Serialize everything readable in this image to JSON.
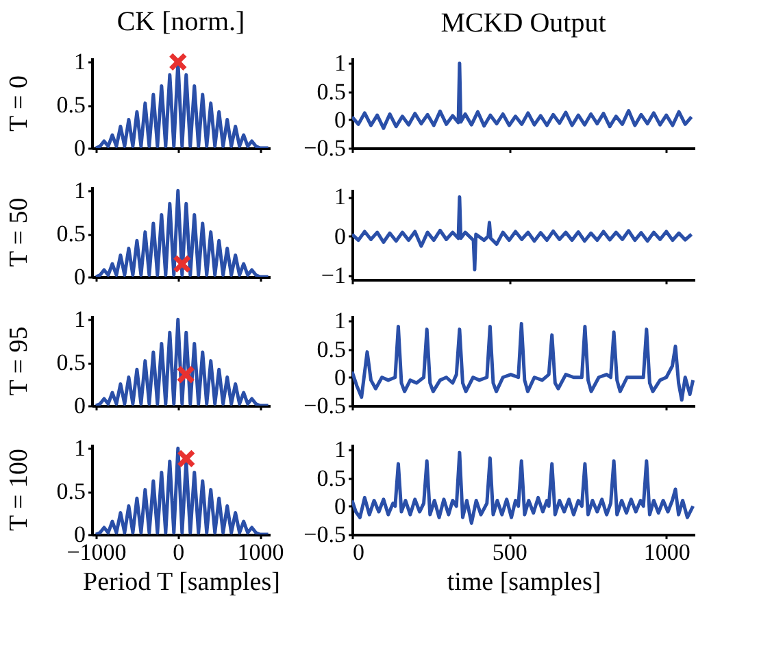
{
  "chart_data": [
    {
      "type": "line",
      "title": "CK [norm.]",
      "ylabel": "T = 0",
      "xlim": [
        -1050,
        1120
      ],
      "ylim": [
        0,
        1.05
      ],
      "xticks": [
        -1000,
        0,
        1000
      ],
      "yticks": [
        0,
        0.5,
        1
      ],
      "tick_labels": "y",
      "series": [
        {
          "color": "#2a4fa8",
          "x": [
            -1000,
            -950,
            -900,
            -850,
            -800,
            -750,
            -700,
            -650,
            -600,
            -550,
            -500,
            -450,
            -400,
            -350,
            -300,
            -250,
            -200,
            -150,
            -100,
            -50,
            0,
            50,
            100,
            150,
            200,
            250,
            300,
            350,
            400,
            450,
            500,
            550,
            600,
            650,
            700,
            750,
            800,
            850,
            900,
            950,
            1000,
            1100
          ],
          "values": [
            0,
            0.02,
            0.08,
            0.02,
            0.15,
            0.02,
            0.25,
            0.02,
            0.33,
            0.02,
            0.42,
            0.02,
            0.52,
            0.02,
            0.62,
            0.02,
            0.72,
            0.02,
            0.85,
            0.02,
            1.0,
            0.02,
            0.85,
            0.02,
            0.72,
            0.02,
            0.62,
            0.02,
            0.52,
            0.02,
            0.42,
            0.02,
            0.33,
            0.02,
            0.25,
            0.02,
            0.15,
            0.02,
            0.08,
            0.02,
            0,
            0
          ]
        },
        {
          "type": "scatter",
          "marker": "cross",
          "color": "#e8312f",
          "x": [
            0
          ],
          "values": [
            1.0
          ]
        }
      ]
    },
    {
      "type": "line",
      "title": "MCKD Output",
      "xlim": [
        0,
        1090
      ],
      "ylim": [
        -0.5,
        1.1
      ],
      "xticks": [
        0,
        500,
        1000
      ],
      "yticks": [
        -0.5,
        0,
        0.5,
        1
      ],
      "tick_labels": "y",
      "series": [
        {
          "color": "#2a4fa8",
          "x": [
            0,
            20,
            40,
            60,
            80,
            100,
            120,
            140,
            160,
            180,
            200,
            220,
            240,
            260,
            280,
            300,
            320,
            338,
            342,
            346,
            360,
            380,
            400,
            420,
            440,
            460,
            480,
            500,
            520,
            540,
            560,
            580,
            600,
            620,
            640,
            660,
            680,
            700,
            720,
            740,
            760,
            780,
            800,
            820,
            840,
            860,
            880,
            900,
            920,
            940,
            960,
            980,
            1000,
            1020,
            1040,
            1060,
            1080
          ],
          "values": [
            0.05,
            -0.08,
            0.12,
            -0.1,
            0.08,
            -0.15,
            0.1,
            -0.12,
            0.06,
            -0.09,
            0.11,
            -0.07,
            0.09,
            -0.1,
            0.15,
            -0.08,
            0.07,
            -0.05,
            1.0,
            -0.04,
            0.1,
            -0.09,
            0.14,
            -0.11,
            0.08,
            -0.07,
            0.1,
            -0.1,
            0.06,
            -0.08,
            0.12,
            -0.09,
            0.07,
            -0.1,
            0.09,
            -0.06,
            0.13,
            -0.1,
            0.08,
            -0.09,
            0.1,
            -0.07,
            0.11,
            -0.12,
            0.06,
            -0.08,
            0.16,
            -0.1,
            0.09,
            -0.07,
            0.12,
            -0.09,
            0.08,
            -0.1,
            0.14,
            -0.08,
            0.05
          ]
        }
      ]
    },
    {
      "type": "line",
      "ylabel": "T = 50",
      "xlim": [
        -1050,
        1120
      ],
      "ylim": [
        0,
        1.05
      ],
      "xticks": [
        -1000,
        0,
        1000
      ],
      "yticks": [
        0,
        0.5,
        1
      ],
      "tick_labels": "y",
      "series": [
        {
          "color": "#2a4fa8",
          "x": [
            -1000,
            -950,
            -900,
            -850,
            -800,
            -750,
            -700,
            -650,
            -600,
            -550,
            -500,
            -450,
            -400,
            -350,
            -300,
            -250,
            -200,
            -150,
            -100,
            -50,
            0,
            50,
            100,
            150,
            200,
            250,
            300,
            350,
            400,
            450,
            500,
            550,
            600,
            650,
            700,
            750,
            800,
            850,
            900,
            950,
            1000,
            1100
          ],
          "values": [
            0,
            0.02,
            0.08,
            0.02,
            0.15,
            0.02,
            0.25,
            0.02,
            0.33,
            0.02,
            0.42,
            0.02,
            0.52,
            0.02,
            0.62,
            0.02,
            0.72,
            0.02,
            0.85,
            0.02,
            1.0,
            0.02,
            0.85,
            0.02,
            0.72,
            0.02,
            0.62,
            0.02,
            0.52,
            0.02,
            0.42,
            0.02,
            0.33,
            0.02,
            0.25,
            0.02,
            0.15,
            0.02,
            0.08,
            0.02,
            0,
            0
          ]
        },
        {
          "type": "scatter",
          "marker": "cross",
          "color": "#e8312f",
          "x": [
            50
          ],
          "values": [
            0.15
          ]
        }
      ]
    },
    {
      "type": "line",
      "xlim": [
        0,
        1090
      ],
      "ylim": [
        -1.1,
        1.2
      ],
      "xticks": [
        0,
        500,
        1000
      ],
      "yticks": [
        -1,
        0,
        1
      ],
      "tick_labels": "y",
      "series": [
        {
          "color": "#2a4fa8",
          "x": [
            0,
            20,
            40,
            60,
            80,
            100,
            120,
            140,
            160,
            180,
            200,
            220,
            240,
            260,
            280,
            300,
            320,
            338,
            342,
            346,
            360,
            386,
            390,
            394,
            420,
            433,
            437,
            441,
            460,
            480,
            500,
            520,
            540,
            560,
            580,
            600,
            620,
            640,
            660,
            680,
            700,
            720,
            740,
            760,
            780,
            800,
            820,
            840,
            860,
            880,
            900,
            920,
            940,
            960,
            980,
            1000,
            1020,
            1040,
            1060,
            1080
          ],
          "values": [
            0.05,
            -0.1,
            0.12,
            -0.08,
            0.1,
            -0.15,
            0.08,
            -0.12,
            0.1,
            -0.1,
            0.12,
            -0.25,
            0.1,
            -0.1,
            0.15,
            -0.08,
            0.1,
            -0.05,
            1.0,
            -0.05,
            0.1,
            -0.1,
            -0.85,
            0.05,
            -0.1,
            0.0,
            0.35,
            -0.05,
            -0.2,
            0.1,
            -0.1,
            0.12,
            -0.08,
            0.1,
            -0.12,
            0.09,
            -0.1,
            0.13,
            -0.08,
            0.1,
            -0.1,
            0.11,
            -0.12,
            0.08,
            -0.1,
            0.12,
            -0.09,
            0.1,
            -0.08,
            0.14,
            -0.1,
            0.09,
            -0.12,
            0.1,
            -0.08,
            0.12,
            -0.1,
            0.08,
            -0.09,
            0.05
          ]
        }
      ]
    },
    {
      "type": "line",
      "ylabel": "T = 95",
      "xlim": [
        -1050,
        1120
      ],
      "ylim": [
        0,
        1.05
      ],
      "xticks": [
        -1000,
        0,
        1000
      ],
      "yticks": [
        0,
        0.5,
        1
      ],
      "tick_labels": "y",
      "series": [
        {
          "color": "#2a4fa8",
          "x": [
            -1000,
            -950,
            -900,
            -850,
            -800,
            -750,
            -700,
            -650,
            -600,
            -550,
            -500,
            -450,
            -400,
            -350,
            -300,
            -250,
            -200,
            -150,
            -100,
            -50,
            0,
            50,
            100,
            150,
            200,
            250,
            300,
            350,
            400,
            450,
            500,
            550,
            600,
            650,
            700,
            750,
            800,
            850,
            900,
            950,
            1000,
            1100
          ],
          "values": [
            0,
            0.02,
            0.08,
            0.02,
            0.15,
            0.02,
            0.25,
            0.02,
            0.33,
            0.02,
            0.42,
            0.02,
            0.52,
            0.02,
            0.62,
            0.02,
            0.72,
            0.02,
            0.85,
            0.02,
            1.0,
            0.02,
            0.85,
            0.02,
            0.72,
            0.02,
            0.62,
            0.02,
            0.52,
            0.02,
            0.42,
            0.02,
            0.33,
            0.02,
            0.25,
            0.02,
            0.15,
            0.02,
            0.08,
            0.02,
            0,
            0
          ]
        },
        {
          "type": "scatter",
          "marker": "cross",
          "color": "#e8312f",
          "x": [
            95
          ],
          "values": [
            0.36
          ]
        }
      ]
    },
    {
      "type": "line",
      "xlim": [
        0,
        1090
      ],
      "ylim": [
        -0.5,
        1.1
      ],
      "xticks": [
        0,
        500,
        1000
      ],
      "yticks": [
        -0.5,
        0,
        0.5,
        1
      ],
      "tick_labels": "y",
      "series": [
        {
          "color": "#2a4fa8",
          "x": [
            0,
            15,
            30,
            48,
            60,
            75,
            95,
            115,
            137,
            147,
            157,
            167,
            185,
            205,
            228,
            238,
            248,
            258,
            280,
            300,
            320,
            332,
            342,
            352,
            362,
            385,
            405,
            429,
            439,
            449,
            459,
            480,
            505,
            529,
            539,
            549,
            559,
            580,
            605,
            626,
            636,
            646,
            656,
            680,
            705,
            731,
            741,
            751,
            761,
            785,
            810,
            823,
            833,
            843,
            853,
            875,
            905,
            927,
            937,
            947,
            957,
            980,
            1000,
            1019,
            1029,
            1039,
            1049,
            1060,
            1075,
            1085
          ],
          "values": [
            0.1,
            -0.15,
            -0.35,
            0.45,
            -0.05,
            -0.2,
            0.0,
            -0.05,
            0.0,
            0.9,
            -0.1,
            -0.25,
            -0.05,
            -0.1,
            0.0,
            0.85,
            -0.1,
            -0.25,
            -0.05,
            0.0,
            -0.1,
            0.05,
            0.85,
            -0.1,
            -0.25,
            0.0,
            -0.05,
            0.0,
            0.9,
            -0.1,
            -0.25,
            0.0,
            0.05,
            0.0,
            0.95,
            -0.05,
            -0.25,
            0.0,
            -0.05,
            0.05,
            0.75,
            -0.1,
            -0.2,
            0.05,
            0.0,
            0.0,
            0.9,
            -0.05,
            -0.25,
            0.0,
            0.05,
            0.0,
            0.8,
            -0.05,
            -0.25,
            0.0,
            0.0,
            0.0,
            0.85,
            -0.1,
            -0.25,
            -0.05,
            0.0,
            0.2,
            0.55,
            -0.1,
            -0.4,
            0.0,
            -0.3,
            -0.05
          ]
        }
      ]
    },
    {
      "type": "line",
      "ylabel": "T = 100",
      "xlabel": "Period T [samples]",
      "xlim": [
        -1050,
        1120
      ],
      "ylim": [
        0,
        1.05
      ],
      "xticks": [
        -1000,
        0,
        1000
      ],
      "yticks": [
        0,
        0.5,
        1
      ],
      "series": [
        {
          "color": "#2a4fa8",
          "x": [
            -1000,
            -950,
            -900,
            -850,
            -800,
            -750,
            -700,
            -650,
            -600,
            -550,
            -500,
            -450,
            -400,
            -350,
            -300,
            -250,
            -200,
            -150,
            -100,
            -50,
            0,
            50,
            100,
            150,
            200,
            250,
            300,
            350,
            400,
            450,
            500,
            550,
            600,
            650,
            700,
            750,
            800,
            850,
            900,
            950,
            1000,
            1100
          ],
          "values": [
            0,
            0.02,
            0.08,
            0.02,
            0.15,
            0.02,
            0.25,
            0.02,
            0.33,
            0.02,
            0.42,
            0.02,
            0.52,
            0.02,
            0.62,
            0.02,
            0.72,
            0.02,
            0.85,
            0.02,
            1.0,
            0.02,
            0.85,
            0.02,
            0.72,
            0.02,
            0.62,
            0.02,
            0.52,
            0.02,
            0.42,
            0.02,
            0.33,
            0.02,
            0.25,
            0.02,
            0.15,
            0.02,
            0.08,
            0.02,
            0,
            0
          ]
        },
        {
          "type": "scatter",
          "marker": "cross",
          "color": "#e8312f",
          "x": [
            100
          ],
          "values": [
            0.88
          ]
        }
      ]
    },
    {
      "type": "line",
      "xlabel": "time [samples]",
      "xlim": [
        0,
        1090
      ],
      "ylim": [
        -0.5,
        1.1
      ],
      "xticks": [
        0,
        500,
        1000
      ],
      "yticks": [
        -0.5,
        0,
        0.5,
        1
      ],
      "series": [
        {
          "color": "#2a4fa8",
          "x": [
            0,
            12,
            25,
            40,
            55,
            70,
            85,
            100,
            115,
            130,
            137,
            147,
            157,
            170,
            185,
            200,
            215,
            228,
            238,
            248,
            262,
            277,
            292,
            307,
            320,
            332,
            342,
            352,
            365,
            380,
            395,
            410,
            429,
            439,
            449,
            462,
            477,
            492,
            507,
            520,
            529,
            539,
            549,
            562,
            577,
            592,
            607,
            620,
            626,
            636,
            646,
            660,
            675,
            690,
            705,
            720,
            731,
            741,
            751,
            765,
            780,
            795,
            810,
            823,
            833,
            843,
            858,
            873,
            888,
            903,
            918,
            927,
            937,
            947,
            960,
            975,
            990,
            1005,
            1019,
            1029,
            1039,
            1052,
            1067,
            1085
          ],
          "values": [
            0.1,
            -0.1,
            -0.2,
            0.15,
            -0.15,
            0.1,
            -0.1,
            0.12,
            -0.15,
            0.05,
            0.0,
            0.75,
            -0.1,
            0.1,
            -0.15,
            0.12,
            -0.1,
            0.05,
            0.8,
            -0.15,
            0.1,
            -0.2,
            0.12,
            -0.15,
            0.1,
            0.0,
            0.95,
            -0.2,
            0.1,
            -0.3,
            0.1,
            -0.15,
            0.05,
            0.85,
            -0.15,
            0.1,
            -0.15,
            0.12,
            -0.2,
            0.1,
            0.0,
            0.8,
            -0.15,
            0.1,
            -0.12,
            0.15,
            -0.1,
            0.1,
            0.0,
            0.75,
            -0.15,
            0.1,
            -0.1,
            0.12,
            -0.15,
            0.1,
            0.0,
            0.75,
            -0.15,
            0.1,
            -0.1,
            0.12,
            -0.15,
            0.05,
            0.8,
            -0.15,
            0.1,
            -0.12,
            0.12,
            -0.1,
            0.1,
            0.0,
            0.8,
            -0.15,
            0.1,
            -0.12,
            0.1,
            -0.1,
            0.1,
            0.3,
            -0.15,
            0.1,
            -0.2,
            0.0
          ]
        }
      ]
    }
  ]
}
